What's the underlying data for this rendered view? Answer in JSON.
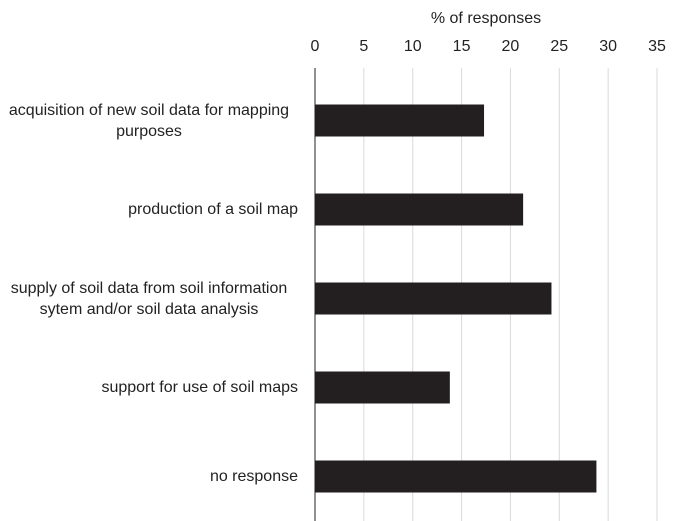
{
  "chart_data": {
    "type": "barh",
    "xlabel": "% of responses",
    "categories": [
      "acquisition of new soil data for mapping purposes",
      "production of a soil map",
      "supply of soil data from soil information sytem and/or soil data analysis",
      "support for use of soil maps",
      "no response"
    ],
    "values": [
      17.3,
      21.3,
      24.2,
      13.8,
      28.8
    ],
    "color": "#231f20",
    "xlim": [
      0,
      35
    ],
    "xticks": [
      0,
      5,
      10,
      15,
      20,
      25,
      30,
      35
    ],
    "grid": true
  }
}
